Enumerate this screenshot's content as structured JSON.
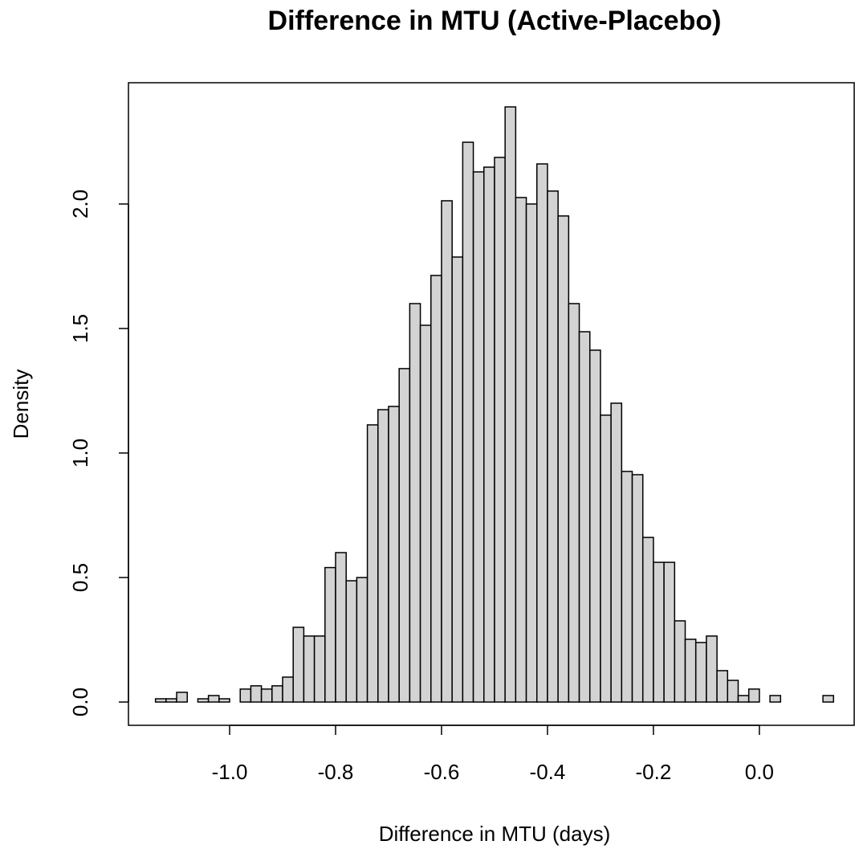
{
  "chart_data": {
    "type": "histogram",
    "title": "Difference in MTU (Active-Placebo)",
    "x_label": "Difference in MTU (days)",
    "y_label": "Density",
    "color": "#d3d3d3",
    "bins": [
      -1.14,
      -1.12,
      -1.1,
      -1.08,
      -1.06,
      -1.04,
      -1.02,
      -1.0,
      -0.98,
      -0.96,
      -0.94,
      -0.92,
      -0.9,
      -0.88,
      -0.86,
      -0.84,
      -0.82,
      -0.8,
      -0.78,
      -0.76,
      -0.74,
      -0.72,
      -0.7,
      -0.68,
      -0.66,
      -0.64,
      -0.62,
      -0.6,
      -0.58,
      -0.56,
      -0.54,
      -0.52,
      -0.5,
      -0.48,
      -0.46,
      -0.44,
      -0.42,
      -0.4,
      -0.38,
      -0.36,
      -0.34,
      -0.32,
      -0.3,
      -0.28,
      -0.26,
      -0.24,
      -0.22,
      -0.2,
      -0.18,
      -0.16,
      -0.14,
      -0.12,
      -0.1,
      -0.08,
      -0.06,
      -0.04,
      -0.02,
      0.0,
      0.02,
      0.04,
      0.06,
      0.08,
      0.1,
      0.12,
      0.14
    ],
    "values": [
      0.013,
      0.013,
      0.039,
      0,
      0.013,
      0.026,
      0.013,
      0,
      0.052,
      0.065,
      0.052,
      0.065,
      0.1,
      0.3,
      0.265,
      0.265,
      0.54,
      0.6,
      0.487,
      0.5,
      1.113,
      1.174,
      1.187,
      1.339,
      1.6,
      1.513,
      1.713,
      2.013,
      1.787,
      2.248,
      2.129,
      2.148,
      2.187,
      2.39,
      2.026,
      2.0,
      2.161,
      2.052,
      1.952,
      1.6,
      1.487,
      1.413,
      1.152,
      1.2,
      0.926,
      0.913,
      0.661,
      0.561,
      0.561,
      0.326,
      0.252,
      0.239,
      0.265,
      0.126,
      0.087,
      0.026,
      0.052,
      0,
      0.026,
      0,
      0,
      0,
      0,
      0.026
    ],
    "xlim": [
      -1.191,
      0.179
    ],
    "ylim": [
      -0.0935,
      2.487
    ],
    "xticks": [
      {
        "value": -1.0,
        "label": "-1.0"
      },
      {
        "value": -0.8,
        "label": "-0.8"
      },
      {
        "value": -0.6,
        "label": "-0.6"
      },
      {
        "value": -0.4,
        "label": "-0.4"
      },
      {
        "value": -0.2,
        "label": "-0.2"
      },
      {
        "value": 0.0,
        "label": "0.0"
      }
    ],
    "yticks": [
      {
        "value": 0.0,
        "label": "0.0"
      },
      {
        "value": 0.5,
        "label": "0.5"
      },
      {
        "value": 1.0,
        "label": "1.0"
      },
      {
        "value": 1.5,
        "label": "1.5"
      },
      {
        "value": 2.0,
        "label": "2.0"
      }
    ]
  }
}
